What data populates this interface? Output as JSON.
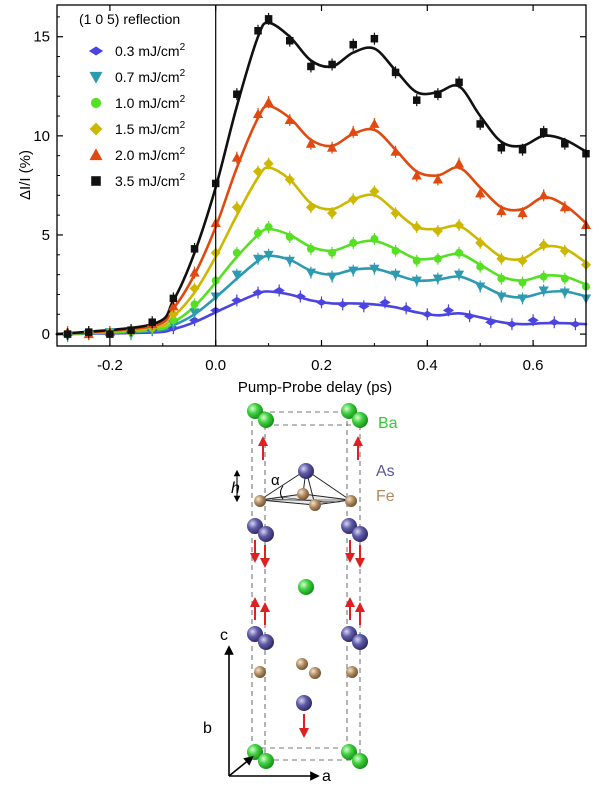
{
  "chart_data": {
    "type": "scatter",
    "title": "",
    "xlabel": "Pump-Probe delay (ps)",
    "ylabel": "ΔI/I (%)",
    "xlim": [
      -0.3,
      0.7
    ],
    "ylim": [
      -0.6,
      16.6
    ],
    "xticks": [
      -0.2,
      0.0,
      0.2,
      0.4,
      0.6
    ],
    "xtick_labels": [
      "-0.2",
      "0.0",
      "0.2",
      "0.4",
      "0.6"
    ],
    "yticks": [
      0,
      5,
      10,
      15
    ],
    "ytick_labels": [
      "0",
      "5",
      "10",
      "15"
    ],
    "grid": false,
    "legend_title": "(1 0 5) reflection",
    "legend_position": "top-left",
    "series": [
      {
        "name": "0.3 mJ/cm",
        "sup": "2",
        "color": "#4b44e0",
        "marker": "diamond-h",
        "x": [
          -0.28,
          -0.24,
          -0.2,
          -0.16,
          -0.12,
          -0.08,
          -0.04,
          0.0,
          0.04,
          0.08,
          0.12,
          0.16,
          0.2,
          0.24,
          0.28,
          0.32,
          0.36,
          0.4,
          0.44,
          0.48,
          0.52,
          0.56,
          0.6,
          0.64,
          0.68
        ],
        "y": [
          0.0,
          0.1,
          0.0,
          0.1,
          0.2,
          0.3,
          0.7,
          1.2,
          1.7,
          2.1,
          2.2,
          1.9,
          1.6,
          1.5,
          1.4,
          1.6,
          1.3,
          1.0,
          1.2,
          0.9,
          0.6,
          0.5,
          0.7,
          0.6,
          0.5
        ],
        "fit": [
          [
            -0.3,
            0
          ],
          [
            -0.12,
            0.08
          ],
          [
            -0.08,
            0.25
          ],
          [
            -0.04,
            0.6
          ],
          [
            0.0,
            1.1
          ],
          [
            0.04,
            1.6
          ],
          [
            0.08,
            2.05
          ],
          [
            0.1,
            2.15
          ],
          [
            0.14,
            2.0
          ],
          [
            0.18,
            1.7
          ],
          [
            0.22,
            1.55
          ],
          [
            0.26,
            1.55
          ],
          [
            0.3,
            1.5
          ],
          [
            0.34,
            1.35
          ],
          [
            0.38,
            1.1
          ],
          [
            0.42,
            0.95
          ],
          [
            0.46,
            1.05
          ],
          [
            0.5,
            0.85
          ],
          [
            0.54,
            0.6
          ],
          [
            0.58,
            0.5
          ],
          [
            0.62,
            0.55
          ],
          [
            0.66,
            0.55
          ],
          [
            0.7,
            0.5
          ]
        ]
      },
      {
        "name": "0.7 mJ/cm",
        "sup": "2",
        "color": "#2c9ab0",
        "marker": "triangle-down",
        "x": [
          -0.28,
          -0.24,
          -0.2,
          -0.16,
          -0.12,
          -0.08,
          -0.04,
          0.0,
          0.04,
          0.08,
          0.1,
          0.14,
          0.18,
          0.22,
          0.26,
          0.3,
          0.34,
          0.38,
          0.42,
          0.46,
          0.5,
          0.54,
          0.58,
          0.62,
          0.66,
          0.7
        ],
        "y": [
          -0.1,
          0.0,
          0.1,
          0.0,
          0.2,
          0.5,
          1.1,
          1.9,
          3.0,
          3.8,
          4.0,
          3.7,
          3.1,
          2.9,
          3.2,
          3.3,
          3.0,
          2.7,
          2.8,
          3.0,
          2.4,
          1.9,
          1.8,
          2.2,
          2.1,
          1.8
        ],
        "fit": [
          [
            -0.3,
            0
          ],
          [
            -0.12,
            0.15
          ],
          [
            -0.08,
            0.45
          ],
          [
            -0.04,
            1.0
          ],
          [
            0.0,
            1.85
          ],
          [
            0.04,
            2.8
          ],
          [
            0.08,
            3.7
          ],
          [
            0.1,
            3.95
          ],
          [
            0.14,
            3.75
          ],
          [
            0.18,
            3.2
          ],
          [
            0.22,
            3.0
          ],
          [
            0.26,
            3.25
          ],
          [
            0.3,
            3.3
          ],
          [
            0.34,
            3.0
          ],
          [
            0.38,
            2.7
          ],
          [
            0.42,
            2.75
          ],
          [
            0.46,
            2.9
          ],
          [
            0.5,
            2.5
          ],
          [
            0.54,
            2.0
          ],
          [
            0.58,
            1.85
          ],
          [
            0.62,
            2.1
          ],
          [
            0.66,
            2.15
          ],
          [
            0.7,
            1.9
          ]
        ]
      },
      {
        "name": "1.0 mJ/cm",
        "sup": "2",
        "color": "#55e022",
        "marker": "circle",
        "x": [
          -0.28,
          -0.24,
          -0.2,
          -0.16,
          -0.12,
          -0.08,
          -0.04,
          0.0,
          0.04,
          0.08,
          0.1,
          0.14,
          0.18,
          0.22,
          0.26,
          0.3,
          0.34,
          0.38,
          0.42,
          0.46,
          0.5,
          0.54,
          0.58,
          0.62,
          0.66,
          0.7
        ],
        "y": [
          0.0,
          0.0,
          0.1,
          0.1,
          0.3,
          0.7,
          1.5,
          2.7,
          4.1,
          5.1,
          5.4,
          4.9,
          4.3,
          4.1,
          4.6,
          4.8,
          4.2,
          3.7,
          3.8,
          4.1,
          3.4,
          2.8,
          2.6,
          2.9,
          2.8,
          2.4
        ],
        "fit": [
          [
            -0.3,
            0
          ],
          [
            -0.12,
            0.2
          ],
          [
            -0.08,
            0.6
          ],
          [
            -0.04,
            1.4
          ],
          [
            0.0,
            2.6
          ],
          [
            0.04,
            3.9
          ],
          [
            0.08,
            5.0
          ],
          [
            0.1,
            5.3
          ],
          [
            0.14,
            5.0
          ],
          [
            0.18,
            4.4
          ],
          [
            0.22,
            4.2
          ],
          [
            0.26,
            4.55
          ],
          [
            0.3,
            4.7
          ],
          [
            0.34,
            4.3
          ],
          [
            0.38,
            3.8
          ],
          [
            0.42,
            3.85
          ],
          [
            0.46,
            4.05
          ],
          [
            0.5,
            3.5
          ],
          [
            0.54,
            2.9
          ],
          [
            0.58,
            2.7
          ],
          [
            0.62,
            2.95
          ],
          [
            0.66,
            2.9
          ],
          [
            0.7,
            2.5
          ]
        ]
      },
      {
        "name": "1.5 mJ/cm",
        "sup": "2",
        "color": "#ccb800",
        "marker": "diamond",
        "x": [
          -0.28,
          -0.24,
          -0.2,
          -0.16,
          -0.12,
          -0.08,
          -0.04,
          0.0,
          0.04,
          0.08,
          0.1,
          0.14,
          0.18,
          0.22,
          0.26,
          0.3,
          0.34,
          0.38,
          0.42,
          0.46,
          0.5,
          0.54,
          0.58,
          0.62,
          0.66,
          0.7
        ],
        "y": [
          0.0,
          0.1,
          0.1,
          0.2,
          0.4,
          1.0,
          2.3,
          4.1,
          6.4,
          8.2,
          8.6,
          7.8,
          6.4,
          6.1,
          6.8,
          7.2,
          6.1,
          5.4,
          5.2,
          5.5,
          4.6,
          3.8,
          3.7,
          4.5,
          4.2,
          3.5
        ],
        "fit": [
          [
            -0.3,
            0
          ],
          [
            -0.12,
            0.3
          ],
          [
            -0.08,
            0.9
          ],
          [
            -0.04,
            2.1
          ],
          [
            0.0,
            3.9
          ],
          [
            0.04,
            6.0
          ],
          [
            0.08,
            7.9
          ],
          [
            0.1,
            8.4
          ],
          [
            0.14,
            7.8
          ],
          [
            0.18,
            6.6
          ],
          [
            0.22,
            6.3
          ],
          [
            0.26,
            6.8
          ],
          [
            0.3,
            7.0
          ],
          [
            0.34,
            6.2
          ],
          [
            0.38,
            5.4
          ],
          [
            0.42,
            5.3
          ],
          [
            0.46,
            5.45
          ],
          [
            0.5,
            4.7
          ],
          [
            0.54,
            3.9
          ],
          [
            0.58,
            3.8
          ],
          [
            0.62,
            4.4
          ],
          [
            0.66,
            4.3
          ],
          [
            0.7,
            3.6
          ]
        ]
      },
      {
        "name": "2.0 mJ/cm",
        "sup": "2",
        "color": "#e04a10",
        "marker": "triangle-up",
        "x": [
          -0.28,
          -0.24,
          -0.2,
          -0.16,
          -0.12,
          -0.08,
          -0.04,
          0.0,
          0.04,
          0.08,
          0.1,
          0.14,
          0.18,
          0.22,
          0.26,
          0.3,
          0.34,
          0.38,
          0.42,
          0.46,
          0.5,
          0.54,
          0.58,
          0.62,
          0.66,
          0.7
        ],
        "y": [
          0.1,
          0.0,
          0.1,
          0.2,
          0.5,
          1.4,
          3.1,
          5.6,
          8.9,
          11.1,
          11.7,
          10.8,
          9.6,
          9.4,
          10.2,
          10.6,
          9.2,
          8.0,
          7.8,
          8.6,
          7.1,
          6.2,
          6.1,
          7.0,
          6.4,
          5.5
        ],
        "fit": [
          [
            -0.3,
            0
          ],
          [
            -0.12,
            0.4
          ],
          [
            -0.08,
            1.3
          ],
          [
            -0.04,
            3.0
          ],
          [
            0.0,
            5.4
          ],
          [
            0.04,
            8.4
          ],
          [
            0.08,
            10.9
          ],
          [
            0.1,
            11.5
          ],
          [
            0.14,
            10.9
          ],
          [
            0.18,
            9.8
          ],
          [
            0.22,
            9.5
          ],
          [
            0.26,
            10.1
          ],
          [
            0.3,
            10.3
          ],
          [
            0.34,
            9.3
          ],
          [
            0.38,
            8.2
          ],
          [
            0.42,
            8.0
          ],
          [
            0.46,
            8.4
          ],
          [
            0.5,
            7.4
          ],
          [
            0.54,
            6.4
          ],
          [
            0.58,
            6.3
          ],
          [
            0.62,
            6.9
          ],
          [
            0.66,
            6.5
          ],
          [
            0.7,
            5.6
          ]
        ]
      },
      {
        "name": "3.5 mJ/cm",
        "sup": "2",
        "color": "#111111",
        "marker": "square",
        "x": [
          -0.28,
          -0.24,
          -0.2,
          -0.16,
          -0.12,
          -0.08,
          -0.04,
          0.0,
          0.04,
          0.08,
          0.1,
          0.14,
          0.18,
          0.22,
          0.26,
          0.3,
          0.34,
          0.38,
          0.42,
          0.46,
          0.5,
          0.54,
          0.58,
          0.62,
          0.66,
          0.7
        ],
        "y": [
          0.0,
          0.1,
          0.0,
          0.2,
          0.6,
          1.8,
          4.3,
          7.6,
          12.1,
          15.3,
          15.9,
          14.8,
          13.5,
          13.6,
          14.6,
          14.9,
          13.2,
          11.8,
          12.1,
          12.7,
          10.6,
          9.4,
          9.3,
          10.2,
          9.6,
          9.1
        ],
        "fit": [
          [
            -0.3,
            0
          ],
          [
            -0.12,
            0.5
          ],
          [
            -0.08,
            1.7
          ],
          [
            -0.04,
            4.1
          ],
          [
            0.0,
            7.4
          ],
          [
            0.04,
            11.5
          ],
          [
            0.08,
            15.0
          ],
          [
            0.1,
            15.7
          ],
          [
            0.14,
            15.0
          ],
          [
            0.18,
            13.8
          ],
          [
            0.22,
            13.5
          ],
          [
            0.26,
            14.2
          ],
          [
            0.3,
            14.4
          ],
          [
            0.34,
            13.3
          ],
          [
            0.38,
            12.2
          ],
          [
            0.42,
            12.2
          ],
          [
            0.46,
            12.5
          ],
          [
            0.5,
            11.0
          ],
          [
            0.54,
            9.7
          ],
          [
            0.58,
            9.5
          ],
          [
            0.62,
            10.0
          ],
          [
            0.66,
            9.8
          ],
          [
            0.7,
            9.2
          ]
        ]
      }
    ]
  },
  "diagram": {
    "atom_labels": {
      "ba": "Ba",
      "as": "As",
      "fe": "Fe"
    },
    "angle_label": "α",
    "height_label": "h",
    "axis_labels": {
      "a": "a",
      "b": "b",
      "c": "c"
    },
    "colors": {
      "ba": "#33cc33",
      "as": "#5a55a0",
      "fe": "#b08a60",
      "arrow": "#e02020"
    }
  }
}
